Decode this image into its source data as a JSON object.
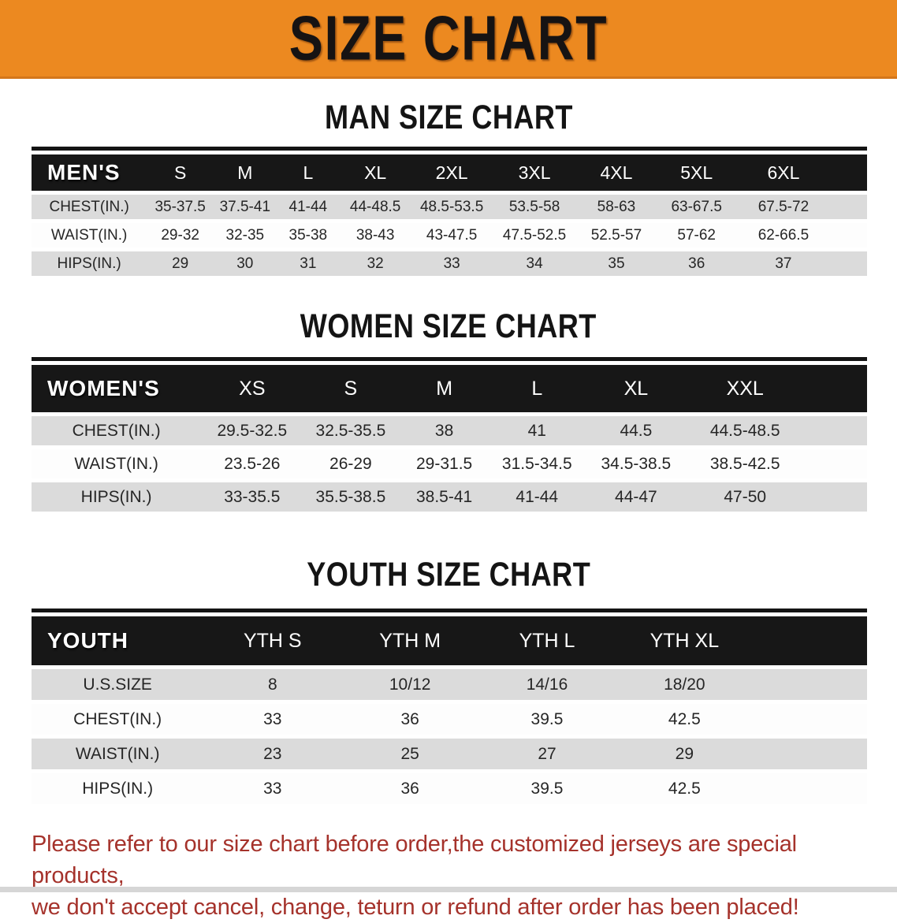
{
  "colors": {
    "banner_bg": "#EC8920",
    "table_header_bg": "#171717",
    "row_shade": "#DBDBDB",
    "notice_text": "#A5322B"
  },
  "banner": {
    "title": "SIZE CHART"
  },
  "headings": {
    "men": "MAN SIZE CHART",
    "women": "WOMEN SIZE CHART",
    "youth": "YOUTH SIZE CHART"
  },
  "tables": {
    "men": {
      "header": [
        "MEN'S",
        "S",
        "M",
        "L",
        "XL",
        "2XL",
        "3XL",
        "4XL",
        "5XL",
        "6XL"
      ],
      "rows": [
        {
          "label": "CHEST(IN.)",
          "values": [
            "35-37.5",
            "37.5-41",
            "41-44",
            "44-48.5",
            "48.5-53.5",
            "53.5-58",
            "58-63",
            "63-67.5",
            "67.5-72"
          ]
        },
        {
          "label": "WAIST(IN.)",
          "values": [
            "29-32",
            "32-35",
            "35-38",
            "38-43",
            "43-47.5",
            "47.5-52.5",
            "52.5-57",
            "57-62",
            "62-66.5"
          ]
        },
        {
          "label": "HIPS(IN.)",
          "values": [
            "29",
            "30",
            "31",
            "32",
            "33",
            "34",
            "35",
            "36",
            "37"
          ]
        }
      ]
    },
    "women": {
      "header": [
        "WOMEN'S",
        "XS",
        "S",
        "M",
        "L",
        "XL",
        "XXL"
      ],
      "rows": [
        {
          "label": "CHEST(IN.)",
          "values": [
            "29.5-32.5",
            "32.5-35.5",
            "38",
            "41",
            "44.5",
            "44.5-48.5"
          ]
        },
        {
          "label": "WAIST(IN.)",
          "values": [
            "23.5-26",
            "26-29",
            "29-31.5",
            "31.5-34.5",
            "34.5-38.5",
            "38.5-42.5"
          ]
        },
        {
          "label": "HIPS(IN.)",
          "values": [
            "33-35.5",
            "35.5-38.5",
            "38.5-41",
            "41-44",
            "44-47",
            "47-50"
          ]
        }
      ]
    },
    "youth": {
      "header": [
        "YOUTH",
        "YTH S",
        "YTH M",
        "YTH L",
        "YTH XL"
      ],
      "rows": [
        {
          "label": "U.S.SIZE",
          "values": [
            "8",
            "10/12",
            "14/16",
            "18/20"
          ]
        },
        {
          "label": "CHEST(IN.)",
          "values": [
            "33",
            "36",
            "39.5",
            "42.5"
          ]
        },
        {
          "label": "WAIST(IN.)",
          "values": [
            "23",
            "25",
            "27",
            "29"
          ]
        },
        {
          "label": "HIPS(IN.)",
          "values": [
            "33",
            "36",
            "39.5",
            "42.5"
          ]
        }
      ]
    }
  },
  "notice": {
    "line1": "Please refer to our size chart before order,the customized jerseys are special products,",
    "line2": "we don't accept cancel, change, teturn or refund after order has been placed!"
  }
}
